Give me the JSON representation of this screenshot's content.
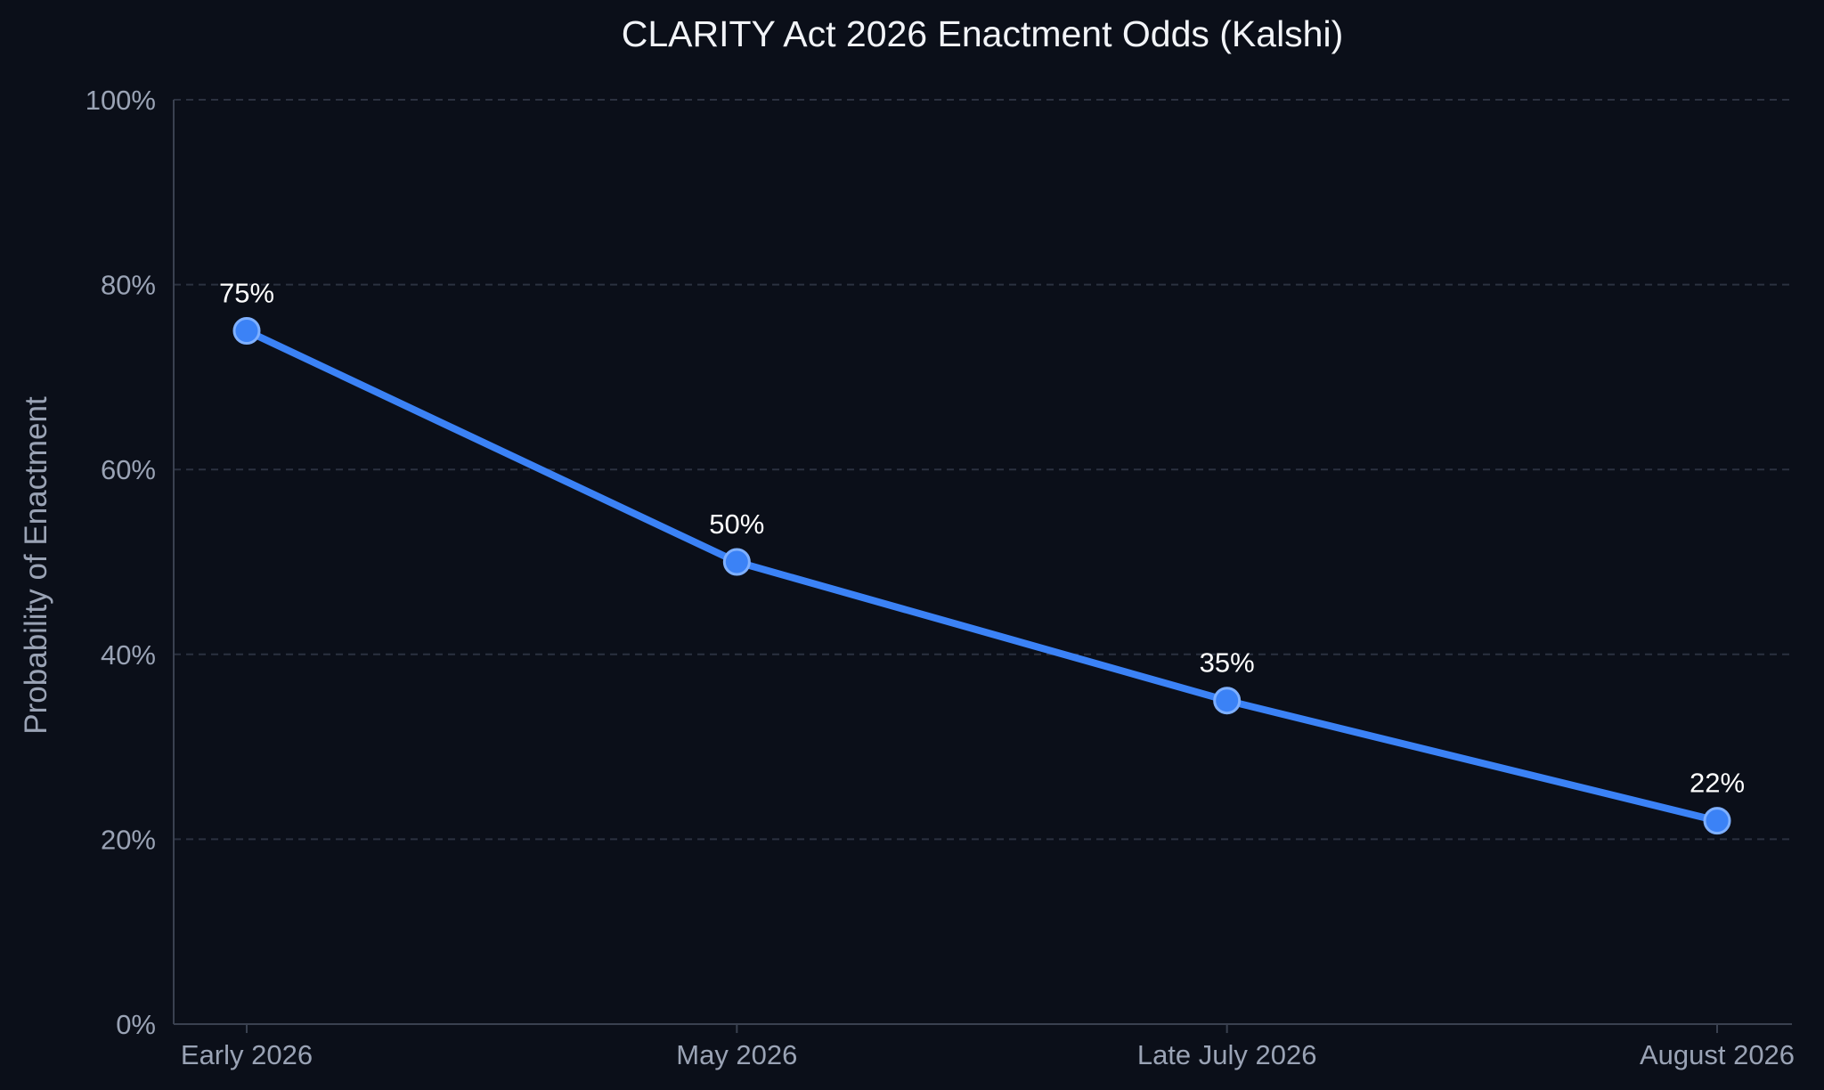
{
  "chart_data": {
    "type": "line",
    "title": "CLARITY Act 2026 Enactment Odds (Kalshi)",
    "xlabel": "",
    "ylabel": "Probability of Enactment",
    "categories": [
      "Early 2026",
      "May 2026",
      "Late July 2026",
      "August 2026"
    ],
    "values": [
      75,
      50,
      35,
      22
    ],
    "data_labels": [
      "75%",
      "50%",
      "35%",
      "22%"
    ],
    "ylim": [
      0,
      100
    ],
    "yticks": [
      0,
      20,
      40,
      60,
      80,
      100
    ],
    "ytick_labels": [
      "0%",
      "20%",
      "40%",
      "60%",
      "80%",
      "100%"
    ],
    "grid": "horizontal dashed",
    "colors": {
      "background": "#0b0f19",
      "line": "#3b82f6",
      "marker": "#3b82f6",
      "marker_edge": "#7fb0ff",
      "grid": "#2b3140",
      "text": "#f2f4f8",
      "muted_text": "#9aa3b5"
    }
  }
}
